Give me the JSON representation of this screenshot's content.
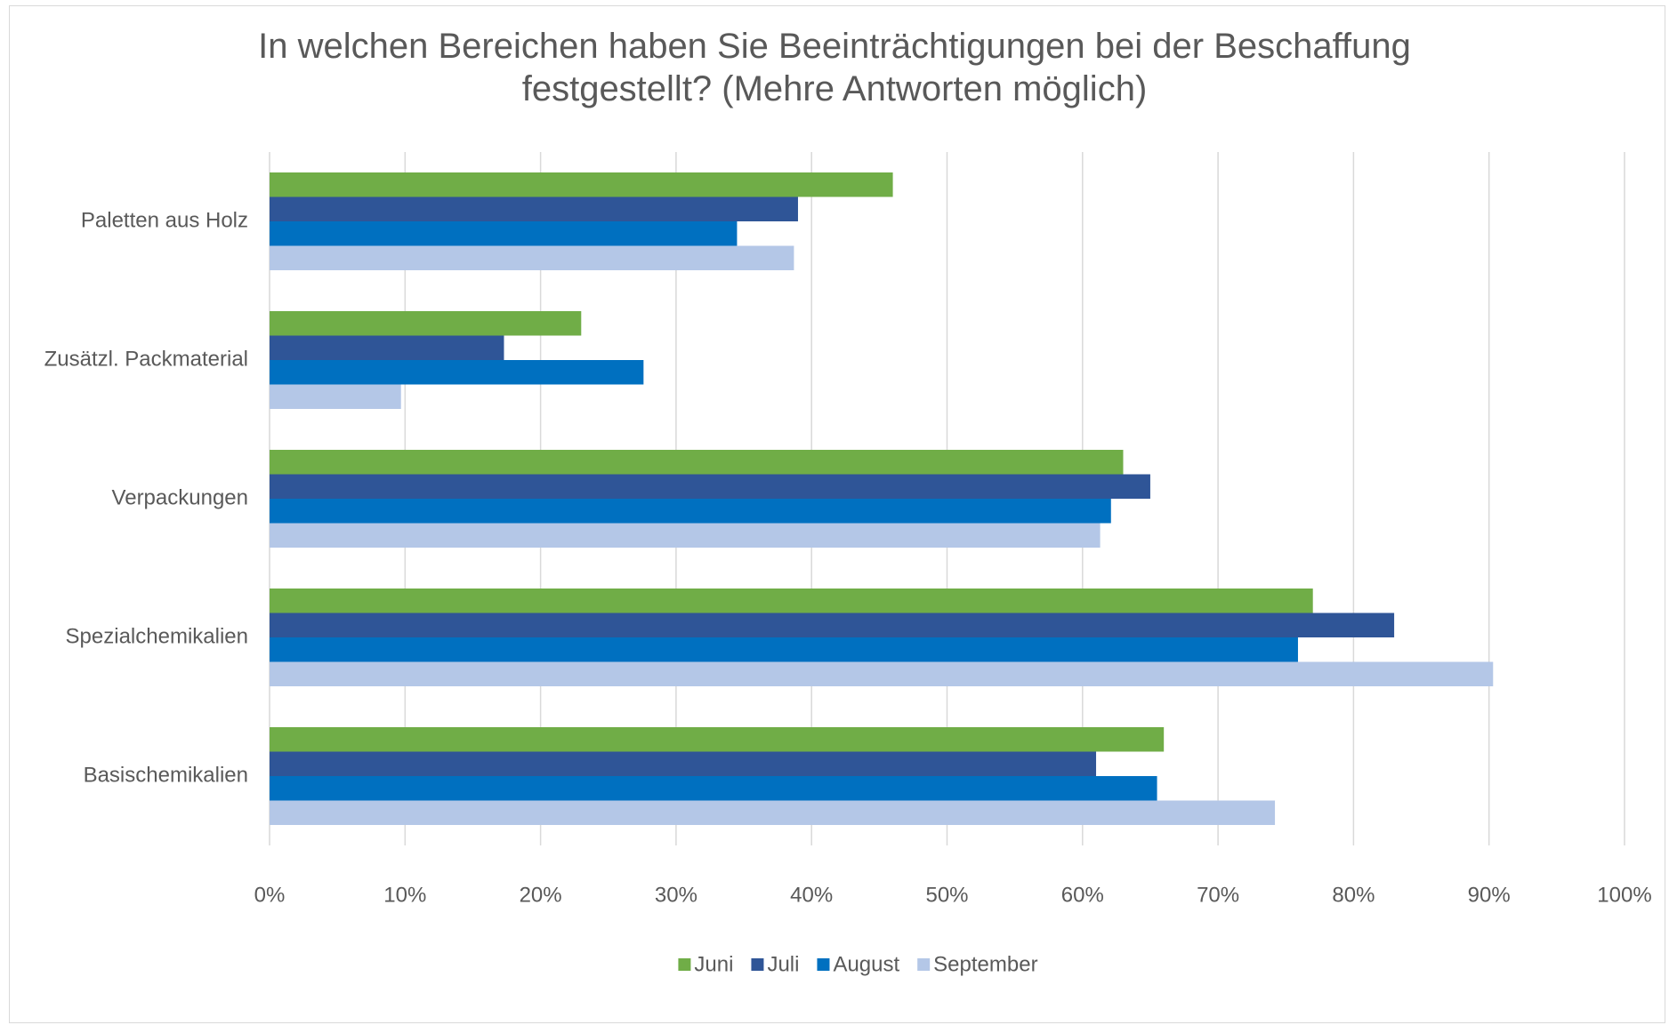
{
  "chart_data": {
    "type": "bar",
    "orientation": "horizontal",
    "title": "In welchen Bereichen haben Sie Beeinträchtigungen bei der Beschaffung festgestellt? (Mehre Antworten möglich)",
    "categories": [
      "Paletten aus Holz",
      "Zusätzl. Packmaterial",
      "Verpackungen",
      "Spezialchemikalien",
      "Basischemikalien"
    ],
    "series": [
      {
        "name": "Juni",
        "color": "#70ad47",
        "values": [
          46.0,
          23.0,
          63.0,
          77.0,
          66.0
        ]
      },
      {
        "name": "Juli",
        "color": "#2f5597",
        "values": [
          39.0,
          17.3,
          65.0,
          83.0,
          61.0
        ]
      },
      {
        "name": "August",
        "color": "#0070c0",
        "values": [
          34.5,
          27.6,
          62.1,
          75.9,
          65.5
        ]
      },
      {
        "name": "September",
        "color": "#b4c7e7",
        "values": [
          38.7,
          9.7,
          61.3,
          90.3,
          74.2
        ]
      }
    ],
    "xlim": [
      0,
      100
    ],
    "xticks": [
      {
        "value": 0,
        "label": "0%"
      },
      {
        "value": 10,
        "label": "10%"
      },
      {
        "value": 20,
        "label": "20%"
      },
      {
        "value": 30,
        "label": "30%"
      },
      {
        "value": 40,
        "label": "40%"
      },
      {
        "value": 50,
        "label": "50%"
      },
      {
        "value": 60,
        "label": "60%"
      },
      {
        "value": 70,
        "label": "70%"
      },
      {
        "value": 80,
        "label": "80%"
      },
      {
        "value": 90,
        "label": "90%"
      },
      {
        "value": 100,
        "label": "100%"
      }
    ],
    "grid": true,
    "legend": "bottom"
  }
}
